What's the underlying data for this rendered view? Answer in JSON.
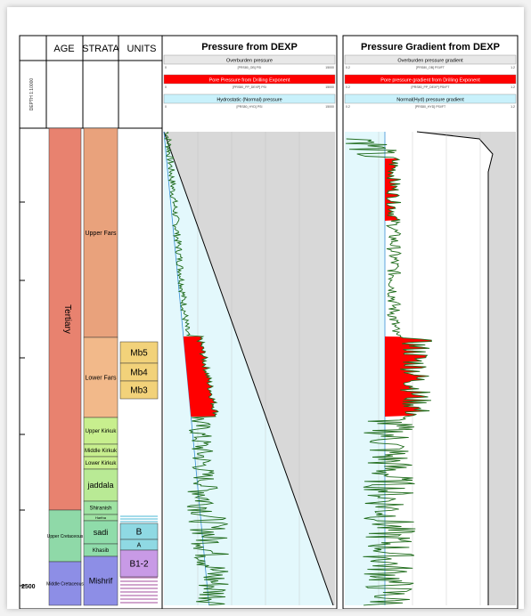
{
  "log_header": {
    "depth_col_label": "DEPTH\n1:10000",
    "age_label": "AGE",
    "strata_label": "STRATA",
    "units_label": "UNITS"
  },
  "depth_scale": {
    "ticks": [
      {
        "label": "",
        "major": false
      },
      {
        "label": "",
        "major": false
      },
      {
        "label": "",
        "major": false
      },
      {
        "label": "",
        "major": false
      },
      {
        "label": "",
        "major": false
      },
      {
        "label": "2500",
        "major": true
      },
      {
        "label": "",
        "major": false
      }
    ]
  },
  "age": [
    {
      "label": "Tertiary",
      "color": "#e8826f",
      "vertical": true
    },
    {
      "label": "Upper Cretaceous",
      "color": "#8fd9a8",
      "vertical": false
    },
    {
      "label": "Middle Cretaceous",
      "color": "#8d8ee6",
      "vertical": false
    }
  ],
  "strata": [
    {
      "label": "Upper Fars",
      "color": "#e9a27c"
    },
    {
      "label": "Lower Fars",
      "color": "#f2b98a"
    },
    {
      "label": "Upper Kirkuk",
      "color": "#c8ef8e"
    },
    {
      "label": "Middle Kirkuk",
      "color": "#c8ef8e"
    },
    {
      "label": "Lower Kirkuk",
      "color": "#c8ef8e"
    },
    {
      "label": "jaddala",
      "color": "#b9ea95"
    },
    {
      "label": "Shiranish",
      "color": "#9fe3a3"
    },
    {
      "label": "Hartha",
      "color": "#9fe3a3"
    },
    {
      "label": "sadi",
      "color": "#8fdcaa"
    },
    {
      "label": "Khasib",
      "color": "#8fdcaa"
    },
    {
      "label": "Mishrif",
      "color": "#8d8ee6"
    }
  ],
  "units": [
    {
      "label": "Mb5",
      "color": "#f2d27a"
    },
    {
      "label": "Mb4",
      "color": "#f2d27a"
    },
    {
      "label": "Mb3",
      "color": "#f2d27a"
    },
    {
      "label": "B",
      "color": "#8fd9e3"
    },
    {
      "label": "A",
      "color": "#8fd9e3"
    },
    {
      "label": "B1-2",
      "color": "#c89ae6"
    }
  ],
  "pressure_panel": {
    "title": "Pressure from DEXP",
    "legend": [
      {
        "label": "Overburden pressure",
        "sub": "[PRS80_OB] PSI",
        "min": "0",
        "max": "15000",
        "color": "#dcdcdc"
      },
      {
        "label": "Pore Pressure from Drilling Exponent",
        "sub": "[PRS80_PP_DEXP] PSI",
        "min": "0",
        "max": "15000",
        "color": "#ff0000"
      },
      {
        "label": "Hydrostatic (Normal) pressure",
        "sub": "[PRS80_HYD] PSI",
        "min": "0",
        "max": "15000",
        "color": "#d4f4fb"
      }
    ]
  },
  "gradient_panel": {
    "title": "Pressure Gradient from DEXP",
    "legend": [
      {
        "label": "Overburden pressure gradient",
        "sub": "[PRS80_OB] PSI/FT",
        "min": "0.2",
        "max": "1.2",
        "color": "#dcdcdc"
      },
      {
        "label": "Pore pressure gradient from Drilling Exponent",
        "sub": "[PRS80_PP_DEXP] PSI/FT",
        "min": "0.2",
        "max": "1.2",
        "color": "#ff0000"
      },
      {
        "label": "Normal(Hyd) pressure gradient",
        "sub": "[PRS80_HYD] PSI/FT",
        "min": "0.2",
        "max": "1.2",
        "color": "#d4f4fb"
      }
    ]
  },
  "colors": {
    "log_curve": "#1e6b1a",
    "overpressure": "#ff0000",
    "hydrostatic_fill": "#e3f8fc",
    "overburden_fill": "#d8d8d8"
  }
}
